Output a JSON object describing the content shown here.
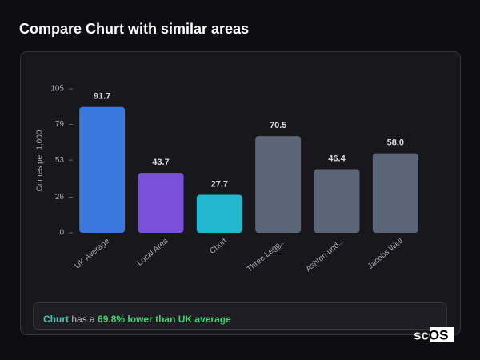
{
  "chart_data": {
    "type": "bar",
    "title": "Compare Churt with similar areas",
    "y_label": "Crimes per 1,000",
    "categories": [
      "UK Average",
      "Local Area",
      "Churt",
      "Three Legg...",
      "Ashton und...",
      "Jacobs Well"
    ],
    "values": [
      91.7,
      43.7,
      27.7,
      70.5,
      46.4,
      58.0
    ],
    "value_labels": [
      "91.7",
      "43.7",
      "27.7",
      "70.5",
      "46.4",
      "58.0"
    ],
    "colors": [
      "#3a78de",
      "#7a50d8",
      "#22b9d0",
      "#5b6578",
      "#5b6578",
      "#5b6578"
    ],
    "ylim": [
      0,
      105
    ],
    "yticks": [
      0,
      26,
      53,
      79,
      105
    ],
    "footer": {
      "area": "Churt",
      "text": "has a",
      "highlight": "69.8% lower than UK average"
    },
    "logo": "scOS"
  }
}
